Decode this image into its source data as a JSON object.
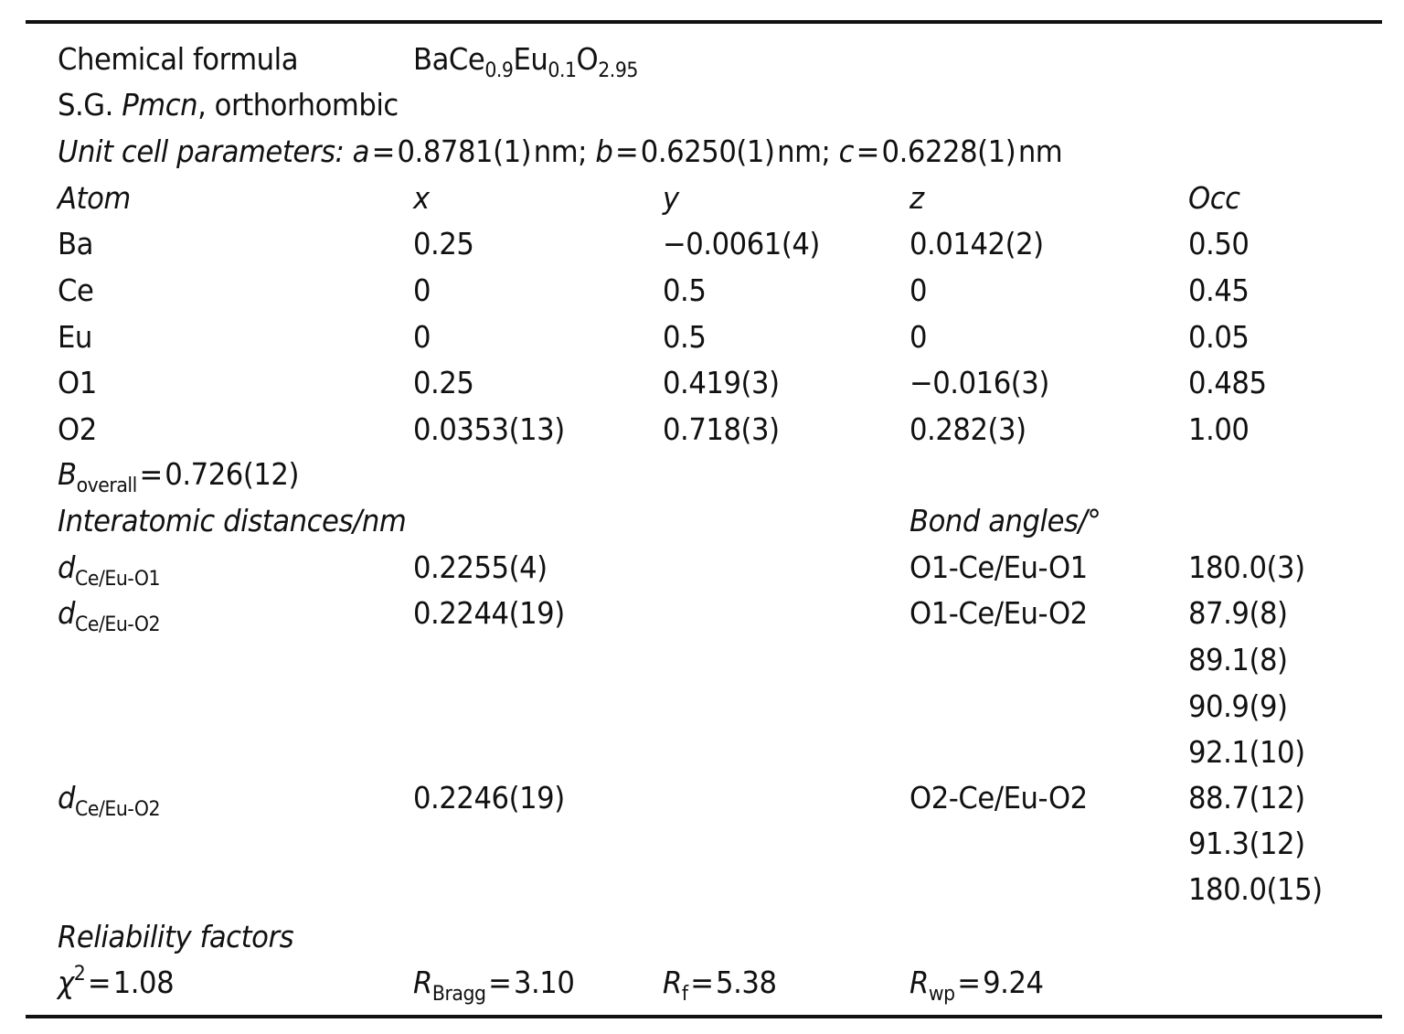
{
  "formula": {
    "label": "Chemical formula",
    "parts": [
      "BaCe",
      "0.9",
      "Eu",
      "0.1",
      "O",
      "2.95"
    ]
  },
  "space_group": {
    "prefix": "S.G. ",
    "symbol": "Pmcn",
    "suffix": ", orthorhombic"
  },
  "unit_cell": {
    "label": "Unit cell parameters:",
    "a": "0.8781(1)",
    "b": "0.6250(1)",
    "c": "0.6228(1)",
    "unit": "nm"
  },
  "atoms_header": [
    "Atom",
    "x",
    "y",
    "z",
    "Occ"
  ],
  "atoms": [
    [
      "Ba",
      "0.25",
      "−0.0061(4)",
      "0.0142(2)",
      "0.50"
    ],
    [
      "Ce",
      "0",
      "0.5",
      "0",
      "0.45"
    ],
    [
      "Eu",
      "0",
      "0.5",
      "0",
      "0.05"
    ],
    [
      "O1",
      "0.25",
      "0.419(3)",
      "−0.016(3)",
      "0.485"
    ],
    [
      "O2",
      "0.0353(13)",
      "0.718(3)",
      "0.282(3)",
      "1.00"
    ]
  ],
  "b_overall": {
    "symbol": "B",
    "sub": "overall",
    "value": "0.726(12)"
  },
  "distances_header": "Interatomic distances/nm",
  "angles_header": "Bond angles/°",
  "distances": [
    {
      "sub": "Ce/Eu-O1",
      "value": "0.2255(4)"
    },
    {
      "sub": "Ce/Eu-O2",
      "value": "0.2244(19)"
    },
    {
      "sub": "Ce/Eu-O2",
      "value": "0.2246(19)"
    }
  ],
  "angles": [
    {
      "label": "O1-Ce/Eu-O1",
      "values": [
        "180.0(3)"
      ]
    },
    {
      "label": "O1-Ce/Eu-O2",
      "values": [
        "87.9(8)",
        "89.1(8)",
        "90.9(9)",
        "92.1(10)"
      ]
    },
    {
      "label": "O2-Ce/Eu-O2",
      "values": [
        "88.7(12)",
        "91.3(12)",
        "180.0(15)"
      ]
    }
  ],
  "reliability": {
    "label": "Reliability factors",
    "chi2": "1.08",
    "r_bragg": "3.10",
    "r_f": "5.38",
    "r_wp": "9.24"
  }
}
